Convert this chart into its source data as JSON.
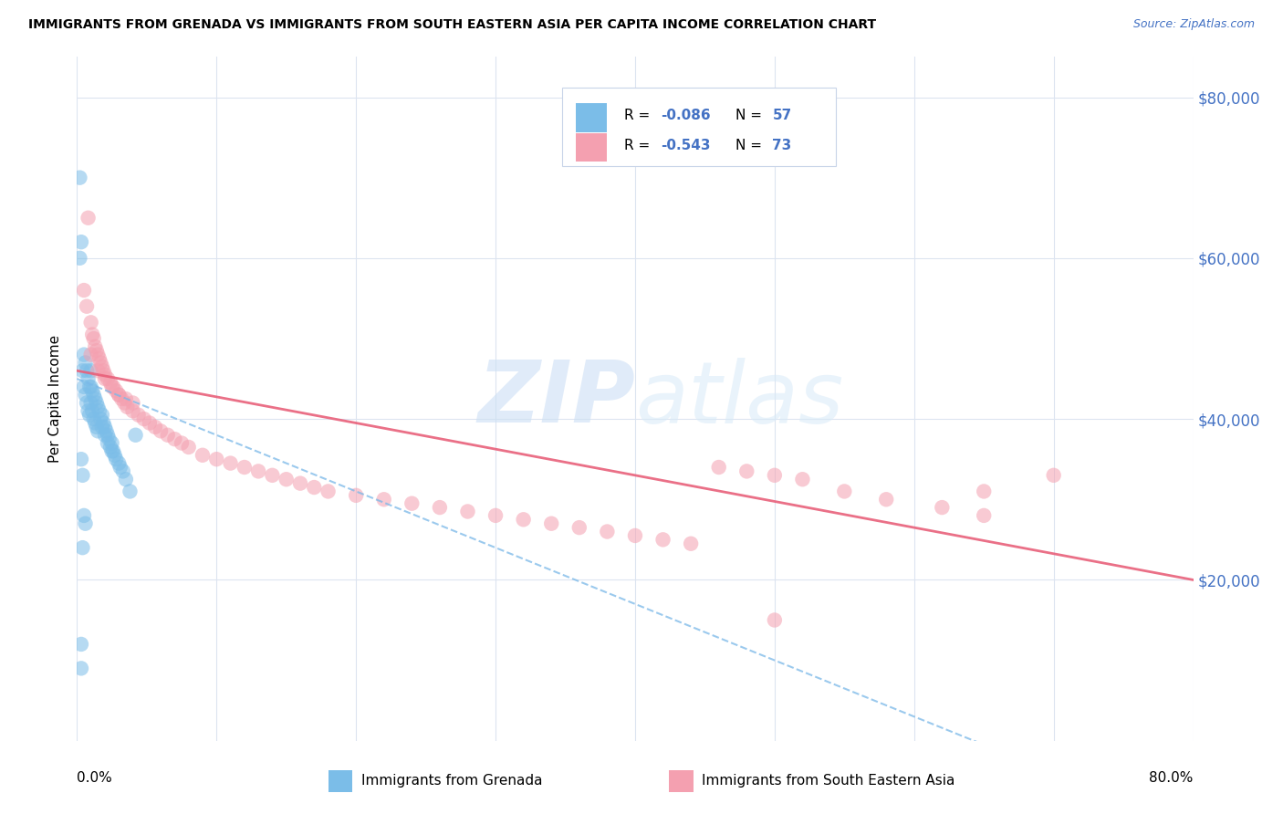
{
  "title": "IMMIGRANTS FROM GRENADA VS IMMIGRANTS FROM SOUTH EASTERN ASIA PER CAPITA INCOME CORRELATION CHART",
  "source": "Source: ZipAtlas.com",
  "ylabel": "Per Capita Income",
  "y_ticks": [
    20000,
    40000,
    60000,
    80000
  ],
  "y_tick_labels": [
    "$20,000",
    "$40,000",
    "$60,000",
    "$80,000"
  ],
  "x_min": 0.0,
  "x_max": 0.8,
  "y_min": 0,
  "y_max": 85000,
  "grenada_R": -0.086,
  "grenada_N": 57,
  "sea_R": -0.543,
  "sea_N": 73,
  "grenada_color": "#7bbde8",
  "sea_color": "#f4a0b0",
  "grenada_line_color": "#7ab8e8",
  "sea_line_color": "#e8607a",
  "background_color": "#ffffff",
  "grid_color": "#dce4f0",
  "label_color": "#4472c4",
  "grenada_x": [
    0.002,
    0.003,
    0.003,
    0.004,
    0.005,
    0.005,
    0.006,
    0.006,
    0.007,
    0.007,
    0.008,
    0.008,
    0.009,
    0.009,
    0.01,
    0.01,
    0.01,
    0.011,
    0.011,
    0.012,
    0.012,
    0.013,
    0.013,
    0.014,
    0.014,
    0.015,
    0.015,
    0.016,
    0.017,
    0.018,
    0.018,
    0.019,
    0.02,
    0.02,
    0.021,
    0.022,
    0.022,
    0.023,
    0.024,
    0.025,
    0.025,
    0.026,
    0.027,
    0.028,
    0.03,
    0.031,
    0.033,
    0.035,
    0.038,
    0.042,
    0.003,
    0.004,
    0.005,
    0.006,
    0.003,
    0.002,
    0.004
  ],
  "grenada_y": [
    70000,
    12000,
    9000,
    46000,
    48000,
    44000,
    47000,
    43000,
    46000,
    42000,
    45000,
    41000,
    44000,
    40500,
    46000,
    44000,
    42000,
    43500,
    41000,
    43000,
    40000,
    42500,
    39500,
    42000,
    39000,
    41500,
    38500,
    41000,
    40000,
    40500,
    39000,
    39500,
    39000,
    38000,
    38500,
    38000,
    37000,
    37500,
    36500,
    37000,
    36000,
    36000,
    35500,
    35000,
    34500,
    34000,
    33500,
    32500,
    31000,
    38000,
    35000,
    33000,
    28000,
    27000,
    62000,
    60000,
    24000
  ],
  "sea_x": [
    0.005,
    0.007,
    0.008,
    0.01,
    0.011,
    0.012,
    0.013,
    0.014,
    0.015,
    0.016,
    0.017,
    0.018,
    0.019,
    0.02,
    0.022,
    0.024,
    0.026,
    0.028,
    0.03,
    0.032,
    0.034,
    0.036,
    0.04,
    0.044,
    0.048,
    0.052,
    0.056,
    0.06,
    0.065,
    0.07,
    0.075,
    0.08,
    0.09,
    0.1,
    0.11,
    0.12,
    0.13,
    0.14,
    0.15,
    0.16,
    0.17,
    0.18,
    0.2,
    0.22,
    0.24,
    0.26,
    0.28,
    0.3,
    0.32,
    0.34,
    0.36,
    0.38,
    0.4,
    0.42,
    0.44,
    0.46,
    0.48,
    0.5,
    0.52,
    0.55,
    0.58,
    0.62,
    0.65,
    0.01,
    0.015,
    0.02,
    0.025,
    0.03,
    0.035,
    0.04,
    0.65,
    0.7,
    0.5
  ],
  "sea_y": [
    56000,
    54000,
    65000,
    52000,
    50500,
    50000,
    49000,
    48500,
    48000,
    47500,
    47000,
    46500,
    46000,
    45500,
    45000,
    44500,
    44000,
    43500,
    43000,
    42500,
    42000,
    41500,
    41000,
    40500,
    40000,
    39500,
    39000,
    38500,
    38000,
    37500,
    37000,
    36500,
    35500,
    35000,
    34500,
    34000,
    33500,
    33000,
    32500,
    32000,
    31500,
    31000,
    30500,
    30000,
    29500,
    29000,
    28500,
    28000,
    27500,
    27000,
    26500,
    26000,
    25500,
    25000,
    24500,
    34000,
    33500,
    33000,
    32500,
    31000,
    30000,
    29000,
    28000,
    48000,
    46000,
    45000,
    44000,
    43000,
    42500,
    42000,
    31000,
    33000,
    15000
  ]
}
